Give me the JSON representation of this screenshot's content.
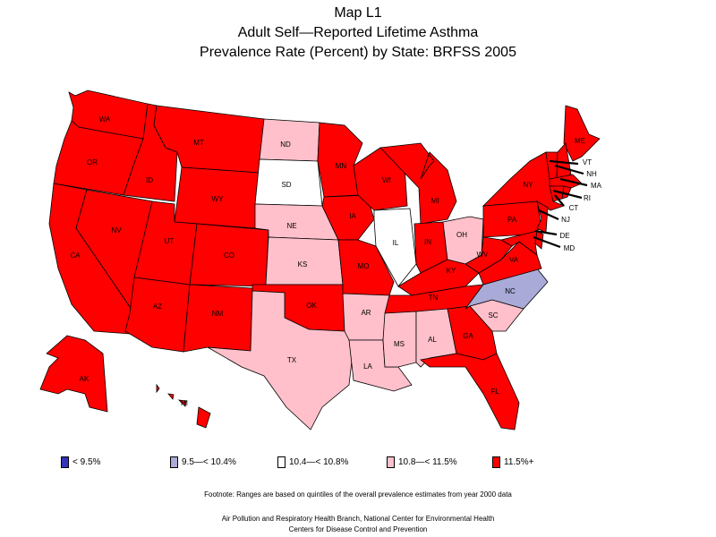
{
  "title": {
    "line1": "Map L1",
    "line2": "Adult Self—Reported Lifetime Asthma",
    "line3": "Prevalence Rate (Percent) by State: BRFSS 2005"
  },
  "colors": {
    "c1": "#3333bb",
    "c2": "#aaaad8",
    "c3": "#ffffff",
    "c4": "#ffc0cb",
    "c5": "#ff0000"
  },
  "legend": [
    {
      "label": "< 9.5%",
      "color": "#3333bb"
    },
    {
      "label": "9.5—< 10.4%",
      "color": "#aaaad8"
    },
    {
      "label": "10.4—< 10.8%",
      "color": "#ffffff"
    },
    {
      "label": "10.8—< 11.5%",
      "color": "#ffc0cb"
    },
    {
      "label": "11.5%+",
      "color": "#ff0000"
    }
  ],
  "states": [
    {
      "abbr": "WA",
      "cls": "c5"
    },
    {
      "abbr": "OR",
      "cls": "c5"
    },
    {
      "abbr": "CA",
      "cls": "c5"
    },
    {
      "abbr": "ID",
      "cls": "c5"
    },
    {
      "abbr": "NV",
      "cls": "c5"
    },
    {
      "abbr": "MT",
      "cls": "c5"
    },
    {
      "abbr": "WY",
      "cls": "c5"
    },
    {
      "abbr": "UT",
      "cls": "c5"
    },
    {
      "abbr": "AZ",
      "cls": "c5"
    },
    {
      "abbr": "CO",
      "cls": "c5"
    },
    {
      "abbr": "NM",
      "cls": "c5"
    },
    {
      "abbr": "ND",
      "cls": "c4"
    },
    {
      "abbr": "SD",
      "cls": "c3"
    },
    {
      "abbr": "NE",
      "cls": "c4"
    },
    {
      "abbr": "KS",
      "cls": "c4"
    },
    {
      "abbr": "OK",
      "cls": "c5"
    },
    {
      "abbr": "TX",
      "cls": "c4"
    },
    {
      "abbr": "MN",
      "cls": "c5"
    },
    {
      "abbr": "IA",
      "cls": "c5"
    },
    {
      "abbr": "MO",
      "cls": "c5"
    },
    {
      "abbr": "AR",
      "cls": "c4"
    },
    {
      "abbr": "LA",
      "cls": "c4"
    },
    {
      "abbr": "WI",
      "cls": "c5"
    },
    {
      "abbr": "IL",
      "cls": "c3"
    },
    {
      "abbr": "MI",
      "cls": "c5"
    },
    {
      "abbr": "IN",
      "cls": "c5"
    },
    {
      "abbr": "OH",
      "cls": "c4"
    },
    {
      "abbr": "KY",
      "cls": "c5"
    },
    {
      "abbr": "TN",
      "cls": "c5"
    },
    {
      "abbr": "MS",
      "cls": "c4"
    },
    {
      "abbr": "AL",
      "cls": "c4"
    },
    {
      "abbr": "GA",
      "cls": "c5"
    },
    {
      "abbr": "FL",
      "cls": "c5"
    },
    {
      "abbr": "SC",
      "cls": "c4"
    },
    {
      "abbr": "NC",
      "cls": "c2"
    },
    {
      "abbr": "VA",
      "cls": "c5"
    },
    {
      "abbr": "WV",
      "cls": "c5"
    },
    {
      "abbr": "PA",
      "cls": "c5"
    },
    {
      "abbr": "NY",
      "cls": "c5"
    },
    {
      "abbr": "ME",
      "cls": "c5"
    },
    {
      "abbr": "VT",
      "cls": "c5"
    },
    {
      "abbr": "NH",
      "cls": "c5"
    },
    {
      "abbr": "MA",
      "cls": "c5"
    },
    {
      "abbr": "RI",
      "cls": "c5"
    },
    {
      "abbr": "CT",
      "cls": "c5"
    },
    {
      "abbr": "NJ",
      "cls": "c5"
    },
    {
      "abbr": "DE",
      "cls": "c5"
    },
    {
      "abbr": "MD",
      "cls": "c5"
    },
    {
      "abbr": "AK",
      "cls": "c5"
    },
    {
      "abbr": "HI",
      "cls": "c5"
    }
  ],
  "footnote": "Footnote: Ranges are based on quintiles of the overall prevalence estimates from year 2000 data",
  "credit1": "Air Pollution and Respiratory Health Branch, National Center for Environmental Health",
  "credit2": "Centers for Disease Control and Prevention"
}
